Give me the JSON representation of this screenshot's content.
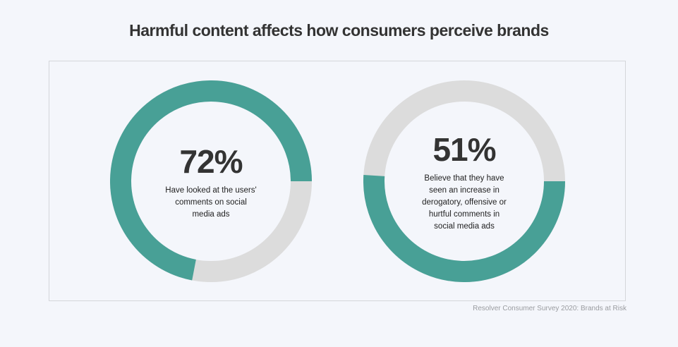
{
  "title": "Harmful content affects how consumers perceive brands",
  "source": "Resolver Consumer Survey 2020: Brands at Risk",
  "chart_data": [
    {
      "type": "donut",
      "values": [
        72
      ],
      "value_labels": [
        "72%"
      ],
      "caption": "Have looked at the users' comments on social media ads",
      "color": "#48a096",
      "track_color": "#dcdcdc",
      "direction": "counterclockwise"
    },
    {
      "type": "donut",
      "values": [
        51
      ],
      "value_labels": [
        "51%"
      ],
      "caption": "Believe that they have seen an increase in derogatory, offensive or hurtful comments in social media ads",
      "color": "#48a096",
      "track_color": "#dcdcdc",
      "direction": "clockwise"
    }
  ]
}
